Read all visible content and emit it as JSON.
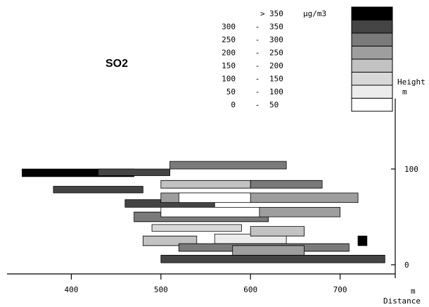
{
  "chart_data": {
    "type": "heatmap",
    "title": "SO2",
    "units": "µg/m3",
    "x_axis": {
      "label": "Distance",
      "unit": "m",
      "ticks": [
        400,
        500,
        600,
        700
      ],
      "range": [
        340,
        760
      ]
    },
    "y_axis": {
      "label": "Height",
      "unit": "m",
      "ticks": [
        0,
        100
      ],
      "range": [
        -20,
        180
      ]
    },
    "legend": {
      "position": "top-right",
      "classes": [
        {
          "range": "> 350",
          "color": "#000000"
        },
        {
          "range": "300 - 350",
          "color": "#444444"
        },
        {
          "range": "250 - 300",
          "color": "#7a7a7a"
        },
        {
          "range": "200 - 250",
          "color": "#9e9e9e"
        },
        {
          "range": "150 - 200",
          "color": "#c2c2c2"
        },
        {
          "range": "100 - 150",
          "color": "#d8d8d8"
        },
        {
          "range": "50 - 100",
          "color": "#ececec"
        },
        {
          "range": "0 - 50",
          "color": "#ffffff"
        }
      ]
    },
    "cells": [
      {
        "x0": 345,
        "x1": 470,
        "y0": 100,
        "y1": 92,
        "c": 0,
        "row": 1
      },
      {
        "x0": 380,
        "x1": 480,
        "y0": 82,
        "y1": 75,
        "c": 1,
        "row": 2
      },
      {
        "x0": 430,
        "x1": 510,
        "y0": 100,
        "y1": 93,
        "c": 1,
        "row": 3
      },
      {
        "x0": 460,
        "x1": 560,
        "y0": 68,
        "y1": 60,
        "c": 1,
        "row": 4
      },
      {
        "x0": 470,
        "x1": 620,
        "y0": 55,
        "y1": 45,
        "c": 2,
        "row": 5
      },
      {
        "x0": 510,
        "x1": 640,
        "y0": 108,
        "y1": 100,
        "c": 2,
        "row": 6
      },
      {
        "x0": 500,
        "x1": 720,
        "y0": 75,
        "y1": 65,
        "c": 3,
        "row": 7
      },
      {
        "x0": 500,
        "x1": 600,
        "y0": 88,
        "y1": 80,
        "c": 4,
        "row": 8
      },
      {
        "x0": 490,
        "x1": 590,
        "y0": 42,
        "y1": 35,
        "c": 5,
        "row": 9
      },
      {
        "x0": 500,
        "x1": 610,
        "y0": 60,
        "y1": 50,
        "c": 7,
        "row": 10
      },
      {
        "x0": 520,
        "x1": 600,
        "y0": 75,
        "y1": 65,
        "c": 7,
        "row": 11
      },
      {
        "x0": 480,
        "x1": 540,
        "y0": 30,
        "y1": 20,
        "c": 4,
        "row": 12
      },
      {
        "x0": 560,
        "x1": 640,
        "y0": 32,
        "y1": 22,
        "c": 6,
        "row": 13
      },
      {
        "x0": 600,
        "x1": 660,
        "y0": 40,
        "y1": 30,
        "c": 4,
        "row": 14
      },
      {
        "x0": 500,
        "x1": 750,
        "y0": 10,
        "y1": 2,
        "c": 1,
        "row": 15
      },
      {
        "x0": 520,
        "x1": 710,
        "y0": 22,
        "y1": 14,
        "c": 2,
        "row": 16
      },
      {
        "x0": 610,
        "x1": 700,
        "y0": 60,
        "y1": 50,
        "c": 3,
        "row": 17
      },
      {
        "x0": 600,
        "x1": 680,
        "y0": 88,
        "y1": 80,
        "c": 2,
        "row": 18
      },
      {
        "x0": 720,
        "x1": 730,
        "y0": 30,
        "y1": 20,
        "c": 0,
        "row": 19
      },
      {
        "x0": 580,
        "x1": 660,
        "y0": 20,
        "y1": 10,
        "c": 3,
        "row": 20
      }
    ]
  }
}
